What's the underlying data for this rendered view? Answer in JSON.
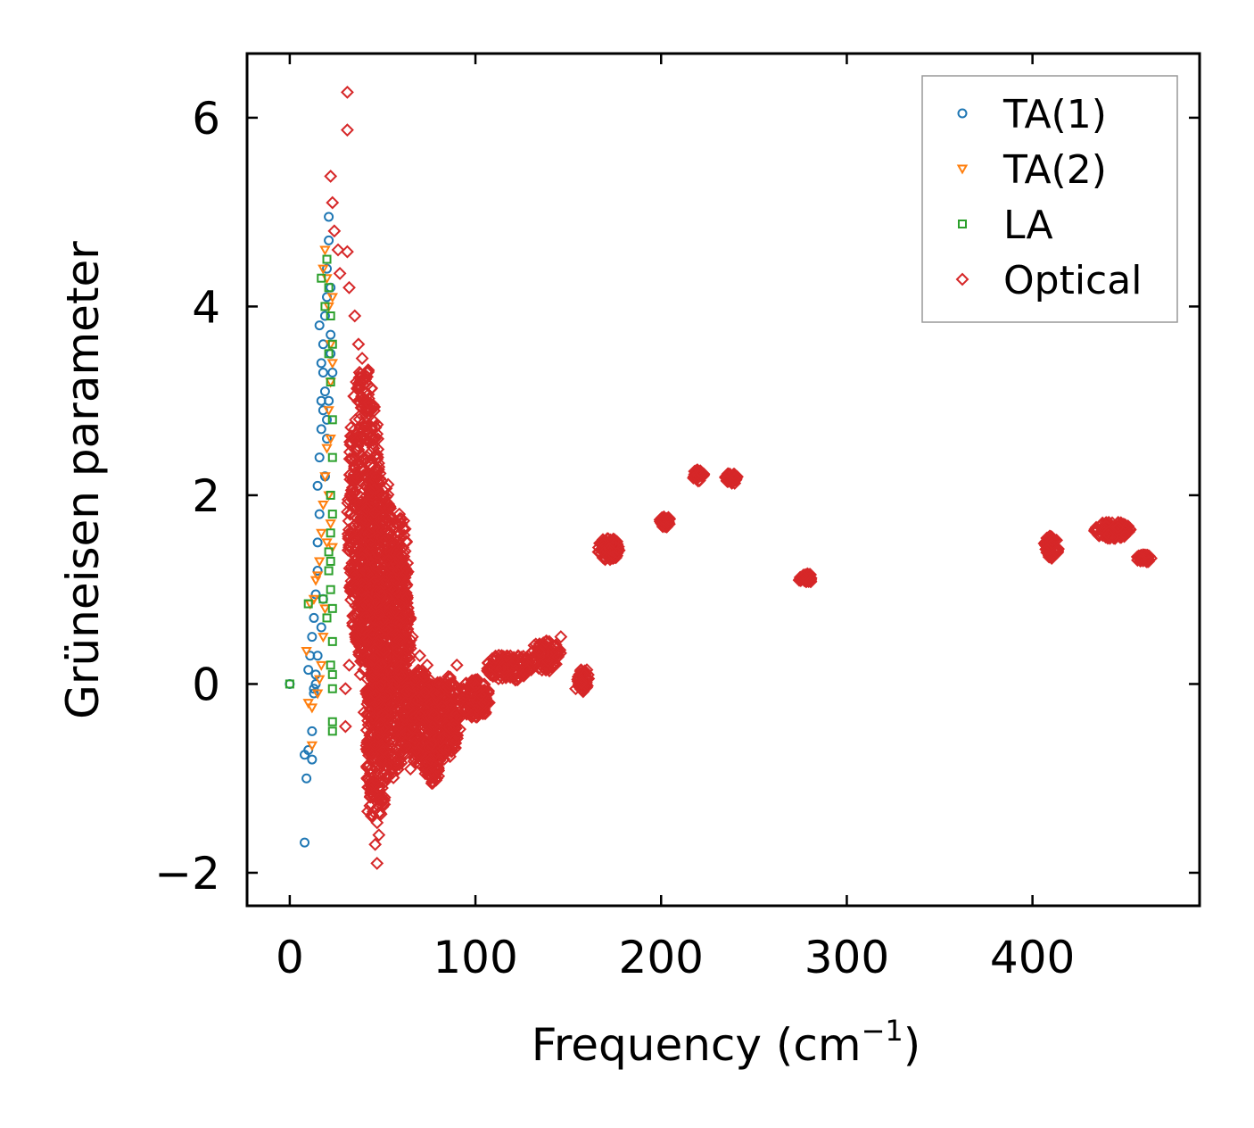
{
  "chart_data": {
    "type": "scatter",
    "title": "",
    "xlabel": "Frequency (cm",
    "xlabel_sup": "−1",
    "xlabel_end": ")",
    "ylabel": "Grüneisen parameter",
    "xlim": [
      -23,
      490
    ],
    "ylim": [
      -2.35,
      6.68
    ],
    "xticks": [
      0,
      100,
      200,
      300,
      400
    ],
    "xtick_labels": [
      "0",
      "100",
      "200",
      "300",
      "400"
    ],
    "yticks": [
      -2,
      0,
      2,
      4,
      6
    ],
    "ytick_labels": [
      "−2",
      "0",
      "2",
      "4",
      "6"
    ],
    "grid": false,
    "legend_position": "top-right",
    "colors": {
      "TA(1)": "#1f77b4",
      "TA(2)": "#ff7f0e",
      "LA": "#2ca02c",
      "Optical": "#d62728"
    },
    "series": [
      {
        "name": "TA(1)",
        "marker": "circle",
        "points": [
          [
            0,
            0
          ],
          [
            8,
            -0.75
          ],
          [
            9,
            -1.0
          ],
          [
            8,
            -1.68
          ],
          [
            10,
            -0.7
          ],
          [
            12,
            -0.5
          ],
          [
            12,
            -0.8
          ],
          [
            13,
            -0.1
          ],
          [
            14,
            0.0
          ],
          [
            10,
            0.15
          ],
          [
            11,
            0.3
          ],
          [
            12,
            0.5
          ],
          [
            13,
            0.7
          ],
          [
            14,
            0.95
          ],
          [
            15,
            1.2
          ],
          [
            15,
            1.5
          ],
          [
            16,
            1.8
          ],
          [
            15,
            2.1
          ],
          [
            16,
            2.4
          ],
          [
            17,
            2.7
          ],
          [
            17,
            3.0
          ],
          [
            18,
            3.3
          ],
          [
            18,
            3.6
          ],
          [
            16,
            3.8
          ],
          [
            19,
            3.9
          ],
          [
            20,
            4.1
          ],
          [
            20,
            4.4
          ],
          [
            21,
            4.7
          ],
          [
            21,
            4.95
          ],
          [
            22,
            4.2
          ],
          [
            22,
            3.5
          ],
          [
            21,
            3.0
          ],
          [
            20,
            2.6
          ],
          [
            19,
            2.2
          ],
          [
            18,
            2.9
          ],
          [
            17,
            3.4
          ],
          [
            19,
            3.1
          ],
          [
            20,
            2.8
          ],
          [
            22,
            3.7
          ],
          [
            23,
            3.3
          ],
          [
            18,
            0.9
          ],
          [
            17,
            0.6
          ],
          [
            15,
            0.3
          ],
          [
            14,
            0.1
          ],
          [
            13,
            -0.05
          ]
        ]
      },
      {
        "name": "TA(2)",
        "marker": "triangle-down",
        "points": [
          [
            9,
            0.35
          ],
          [
            10,
            -0.2
          ],
          [
            12,
            -0.25
          ],
          [
            12,
            -0.65
          ],
          [
            11,
            0.85
          ],
          [
            13,
            0.9
          ],
          [
            14,
            1.1
          ],
          [
            15,
            1.15
          ],
          [
            16,
            1.3
          ],
          [
            17,
            1.6
          ],
          [
            18,
            1.9
          ],
          [
            19,
            2.2
          ],
          [
            20,
            2.5
          ],
          [
            21,
            2.9
          ],
          [
            22,
            3.2
          ],
          [
            22,
            3.6
          ],
          [
            21,
            4.0
          ],
          [
            20,
            4.3
          ],
          [
            19,
            4.6
          ],
          [
            18,
            4.4
          ],
          [
            23,
            4.1
          ],
          [
            23,
            3.4
          ],
          [
            22,
            2.6
          ],
          [
            21,
            2.0
          ],
          [
            20,
            1.5
          ],
          [
            19,
            0.8
          ],
          [
            18,
            0.5
          ],
          [
            17,
            0.2
          ],
          [
            16,
            0.05
          ],
          [
            15,
            -0.1
          ],
          [
            22,
            1.7
          ],
          [
            23,
            1.45
          ]
        ]
      },
      {
        "name": "LA",
        "marker": "square",
        "points": [
          [
            0,
            0
          ],
          [
            10,
            0.85
          ],
          [
            18,
            0.9
          ],
          [
            20,
            0.7
          ],
          [
            21,
            1.2
          ],
          [
            22,
            1.6
          ],
          [
            22,
            2.0
          ],
          [
            23,
            2.4
          ],
          [
            23,
            2.8
          ],
          [
            22,
            3.2
          ],
          [
            23,
            3.6
          ],
          [
            22,
            3.9
          ],
          [
            21,
            4.2
          ],
          [
            20,
            4.5
          ],
          [
            17,
            4.3
          ],
          [
            19,
            4.0
          ],
          [
            21,
            3.5
          ],
          [
            22,
            1.0
          ],
          [
            23,
            0.8
          ],
          [
            23,
            0.45
          ],
          [
            23,
            0.1
          ],
          [
            23,
            -0.05
          ],
          [
            23,
            -0.4
          ],
          [
            23,
            -0.5
          ],
          [
            22,
            0.2
          ],
          [
            21,
            1.4
          ],
          [
            23,
            1.8
          ],
          [
            22,
            1.3
          ]
        ]
      },
      {
        "name": "Optical",
        "marker": "diamond",
        "points": [
          [
            31,
            6.27
          ],
          [
            31,
            5.87
          ],
          [
            22,
            5.38
          ],
          [
            23,
            5.1
          ],
          [
            24,
            4.8
          ],
          [
            26,
            4.6
          ],
          [
            31,
            4.58
          ],
          [
            27,
            4.35
          ],
          [
            32,
            4.2
          ],
          [
            35,
            3.9
          ],
          [
            37,
            3.6
          ],
          [
            39,
            3.45
          ],
          [
            41,
            3.0
          ],
          [
            44,
            2.9
          ],
          [
            46,
            2.6
          ],
          [
            48,
            2.3
          ],
          [
            50,
            2.0
          ],
          [
            52,
            1.6
          ],
          [
            55,
            1.4
          ],
          [
            57,
            1.7
          ],
          [
            59,
            1.8
          ],
          [
            61,
            1.2
          ],
          [
            63,
            0.9
          ],
          [
            65,
            0.7
          ],
          [
            66,
            0.5
          ],
          [
            70,
            0.3
          ],
          [
            74,
            0.2
          ],
          [
            78,
            -0.2
          ],
          [
            82,
            -0.4
          ],
          [
            86,
            0.0
          ],
          [
            90,
            0.2
          ],
          [
            95,
            -0.2
          ],
          [
            100,
            -0.3
          ],
          [
            104,
            -0.1
          ],
          [
            108,
            0.1
          ],
          [
            112,
            0.2
          ],
          [
            118,
            0.25
          ],
          [
            124,
            0.2
          ],
          [
            130,
            0.15
          ],
          [
            136,
            0.3
          ],
          [
            142,
            0.4
          ],
          [
            146,
            0.5
          ],
          [
            156,
            0.1
          ],
          [
            160,
            0.15
          ],
          [
            154,
            -0.05
          ],
          [
            158,
            -0.08
          ],
          [
            30,
            -0.05
          ],
          [
            30,
            -0.45
          ],
          [
            32,
            0.2
          ],
          [
            36,
            0.6
          ],
          [
            38,
            0.1
          ],
          [
            40,
            -0.3
          ],
          [
            42,
            -0.6
          ],
          [
            44,
            -1.0
          ],
          [
            44,
            -1.4
          ],
          [
            46,
            -1.7
          ],
          [
            47,
            -1.9
          ],
          [
            48,
            -1.6
          ],
          [
            50,
            -1.3
          ],
          [
            42,
            -1.35
          ],
          [
            52,
            -1.0
          ],
          [
            54,
            -0.6
          ],
          [
            56,
            -0.4
          ],
          [
            58,
            -0.8
          ],
          [
            62,
            -0.75
          ],
          [
            65,
            -0.9
          ],
          [
            70,
            -0.85
          ],
          [
            73,
            -0.95
          ],
          [
            77,
            -1.05
          ],
          [
            80,
            -0.9
          ],
          [
            84,
            -0.7
          ],
          [
            88,
            -0.5
          ],
          [
            92,
            -0.15
          ],
          [
            98,
            -0.35
          ]
        ],
        "clusters": [
          {
            "cx": 40,
            "cy": 1.8,
            "rx": 9,
            "ry": 1.6,
            "n": 500
          },
          {
            "cx": 48,
            "cy": 0.9,
            "rx": 10,
            "ry": 1.4,
            "n": 450
          },
          {
            "cx": 55,
            "cy": 0.2,
            "rx": 11,
            "ry": 1.2,
            "n": 400
          },
          {
            "cx": 47,
            "cy": -0.6,
            "rx": 6,
            "ry": 0.9,
            "n": 220
          },
          {
            "cx": 60,
            "cy": 0.9,
            "rx": 4,
            "ry": 0.9,
            "n": 120
          },
          {
            "cx": 70,
            "cy": -0.35,
            "rx": 10,
            "ry": 0.5,
            "n": 260
          },
          {
            "cx": 84,
            "cy": -0.35,
            "rx": 8,
            "ry": 0.45,
            "n": 200
          },
          {
            "cx": 77,
            "cy": -0.85,
            "rx": 4,
            "ry": 0.22,
            "n": 80
          },
          {
            "cx": 100,
            "cy": -0.15,
            "rx": 8,
            "ry": 0.22,
            "n": 120
          },
          {
            "cx": 118,
            "cy": 0.18,
            "rx": 12,
            "ry": 0.15,
            "n": 120
          },
          {
            "cx": 138,
            "cy": 0.3,
            "rx": 8,
            "ry": 0.18,
            "n": 80
          },
          {
            "cx": 158,
            "cy": 0.05,
            "rx": 3,
            "ry": 0.12,
            "n": 60
          },
          {
            "cx": 172,
            "cy": 1.43,
            "rx": 6,
            "ry": 0.12,
            "n": 90
          },
          {
            "cx": 202,
            "cy": 1.72,
            "rx": 3,
            "ry": 0.06,
            "n": 40
          },
          {
            "cx": 220,
            "cy": 2.21,
            "rx": 3,
            "ry": 0.06,
            "n": 40
          },
          {
            "cx": 238,
            "cy": 2.18,
            "rx": 3.5,
            "ry": 0.06,
            "n": 40
          },
          {
            "cx": 278,
            "cy": 1.12,
            "rx": 4,
            "ry": 0.05,
            "n": 40
          },
          {
            "cx": 410,
            "cy": 1.45,
            "rx": 4,
            "ry": 0.12,
            "n": 60
          },
          {
            "cx": 443,
            "cy": 1.63,
            "rx": 10,
            "ry": 0.09,
            "n": 120
          },
          {
            "cx": 460,
            "cy": 1.33,
            "rx": 4,
            "ry": 0.04,
            "n": 40
          }
        ]
      }
    ]
  }
}
